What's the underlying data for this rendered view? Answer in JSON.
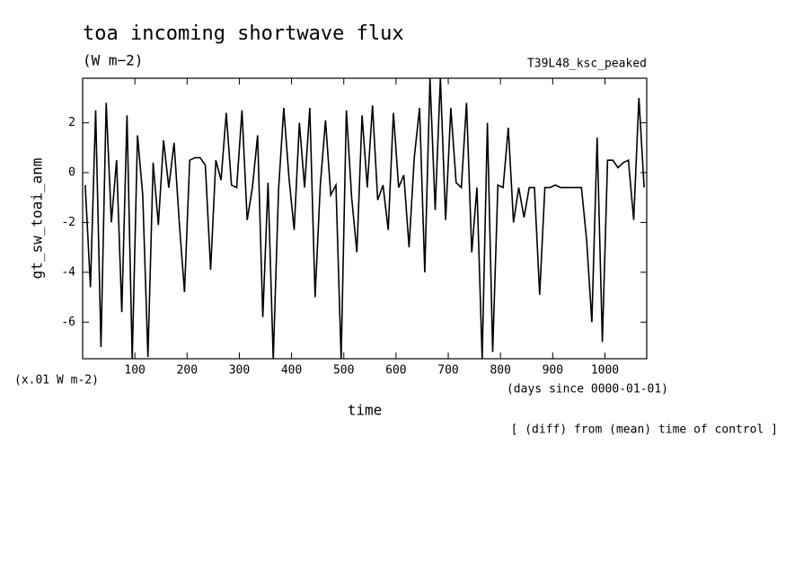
{
  "chart_data": {
    "type": "line",
    "title": "toa incoming shortwave flux",
    "subtitle": "(W m−2)",
    "annotation": "T39L48_ksc_peaked",
    "y_label": "gt_sw_toai_anm",
    "y_unit": "(x.01 W m-2)",
    "x_unit": "(days since 0000-01-01)",
    "x_label": "time",
    "note": "[ (diff) from (mean) time of control ]",
    "color": "#000000",
    "xlim": [
      0,
      1080
    ],
    "xticks": [
      100,
      200,
      300,
      400,
      500,
      600,
      700,
      800,
      900,
      1000
    ],
    "ylim": [
      -7.47,
      3.79
    ],
    "yticks": [
      2,
      0,
      -2,
      -4,
      -6
    ],
    "x": [
      5,
      15,
      25,
      35,
      45,
      55,
      65,
      75,
      85,
      95,
      105,
      115,
      125,
      135,
      145,
      155,
      165,
      175,
      185,
      195,
      205,
      215,
      225,
      235,
      245,
      255,
      265,
      275,
      285,
      295,
      305,
      315,
      325,
      335,
      345,
      355,
      365,
      375,
      385,
      395,
      405,
      415,
      425,
      435,
      445,
      455,
      465,
      475,
      485,
      495,
      505,
      515,
      525,
      535,
      545,
      555,
      565,
      575,
      585,
      595,
      605,
      615,
      625,
      635,
      645,
      655,
      665,
      675,
      685,
      695,
      705,
      715,
      725,
      735,
      745,
      755,
      765,
      775,
      785,
      795,
      805,
      815,
      825,
      835,
      845,
      855,
      865,
      875,
      885,
      895,
      905,
      915,
      925,
      935,
      945,
      955,
      965,
      975,
      985,
      995,
      1005,
      1015,
      1025,
      1035,
      1045,
      1055,
      1065,
      1075
    ],
    "values": [
      -0.5,
      -4.6,
      2.5,
      -7.0,
      2.8,
      -2.0,
      0.5,
      -5.6,
      2.3,
      -7.5,
      1.5,
      -0.9,
      -7.4,
      0.4,
      -2.1,
      1.3,
      -0.6,
      1.2,
      -2.0,
      -4.8,
      0.5,
      0.6,
      0.6,
      0.3,
      -3.9,
      0.5,
      -0.3,
      2.4,
      -0.5,
      -0.6,
      2.5,
      -1.9,
      -0.6,
      1.5,
      -5.8,
      -0.4,
      -7.5,
      -0.7,
      2.6,
      -0.2,
      -2.3,
      2.0,
      -0.6,
      2.6,
      -5.0,
      -0.5,
      2.1,
      -0.9,
      -0.5,
      -7.5,
      2.5,
      -1.0,
      -3.2,
      2.3,
      -0.6,
      2.7,
      -1.1,
      -0.5,
      -2.3,
      2.4,
      -0.6,
      -0.1,
      -3.0,
      0.6,
      2.6,
      -4.0,
      3.8,
      -1.5,
      3.8,
      -1.9,
      2.6,
      -0.4,
      -0.6,
      2.8,
      -3.2,
      -0.6,
      -7.5,
      2.0,
      -7.2,
      -0.5,
      -0.6,
      1.8,
      -2.0,
      -0.6,
      -1.8,
      -0.6,
      -0.6,
      -4.9,
      -0.6,
      -0.6,
      -0.5,
      -0.6,
      -0.6,
      -0.6,
      -0.6,
      -0.6,
      -2.7,
      -6.0,
      1.4,
      -6.8,
      0.5,
      0.5,
      0.2,
      0.4,
      0.5,
      -1.9,
      3.0,
      -0.6
    ]
  }
}
